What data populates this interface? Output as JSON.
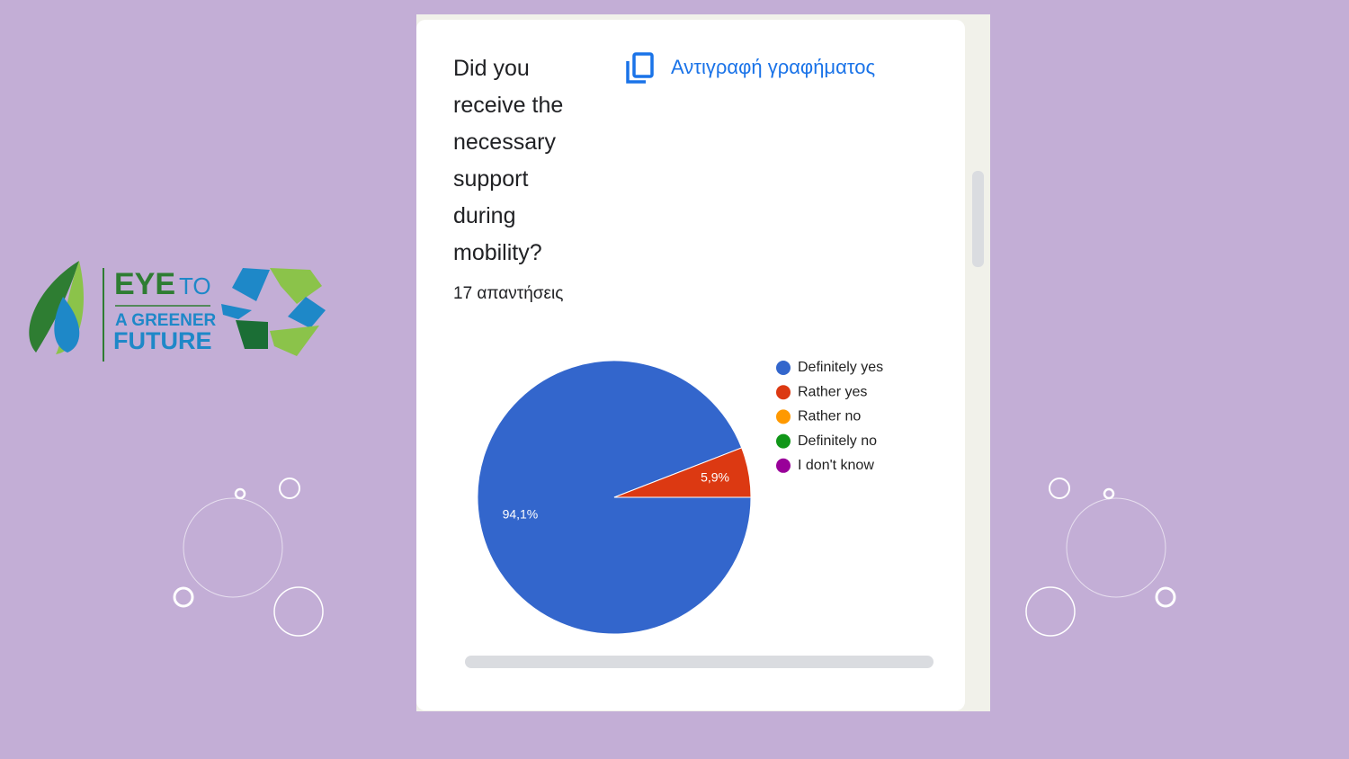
{
  "logo": {
    "word1": "EYE",
    "word2": "TO",
    "line2": "A GREENER",
    "line3": "FUTURE"
  },
  "copy_button": "Αντιγραφή γραφήματος",
  "chart_data": {
    "type": "pie",
    "title": "Did you receive the necessary support during mobility?",
    "subtitle": "17 απαντήσεις",
    "categories": [
      "Definitely yes",
      "Rather yes",
      "Rather no",
      "Definitely no",
      "I don't know"
    ],
    "values": [
      94.1,
      5.9,
      0,
      0,
      0
    ],
    "value_labels": [
      "94,1%",
      "5,9%",
      null,
      null,
      null
    ],
    "colors": [
      "#3366cc",
      "#dc3912",
      "#ff9900",
      "#109618",
      "#990099"
    ],
    "legend": "right"
  }
}
